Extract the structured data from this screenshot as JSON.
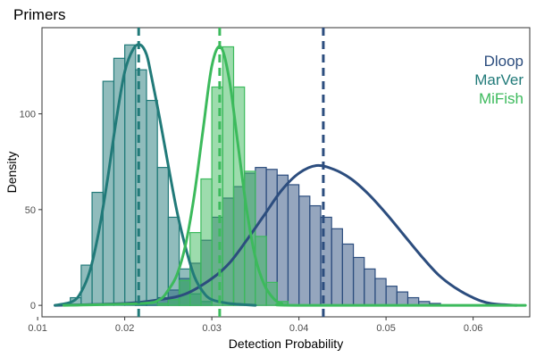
{
  "chart_data": {
    "type": "histogram-density",
    "title": "Primers",
    "xlabel": "Detection Probability",
    "ylabel": "Density",
    "xlim": [
      0.0105,
      0.0665
    ],
    "ylim": [
      -6,
      145
    ],
    "x_ticks": [
      0.01,
      0.02,
      0.03,
      0.04,
      0.05,
      0.06
    ],
    "x_tick_labels": [
      "0.01",
      "0.02",
      "0.03",
      "0.04",
      "0.05",
      "0.06"
    ],
    "y_ticks": [
      0,
      50,
      100
    ],
    "y_tick_labels": [
      "0",
      "50",
      "100"
    ],
    "bin_width": 0.00125,
    "legend_position": "top-right",
    "series": [
      {
        "name": "Dloop",
        "color": "#2c4d7e",
        "fill": "#2c4d7e",
        "mean": 0.0428,
        "bin_start": 0.02125,
        "hist": [
          1,
          2,
          4,
          8,
          14,
          22,
          34,
          46,
          56,
          62,
          69,
          72,
          71,
          68,
          63,
          57,
          52,
          46,
          40,
          32,
          25,
          19,
          14,
          10,
          7,
          4,
          2,
          1
        ],
        "density_x": [
          0.012,
          0.02,
          0.024,
          0.027,
          0.03,
          0.032,
          0.034,
          0.036,
          0.038,
          0.04,
          0.042,
          0.044,
          0.046,
          0.048,
          0.05,
          0.052,
          0.054,
          0.056,
          0.058,
          0.06,
          0.062,
          0.065
        ],
        "density_y": [
          0,
          1,
          3,
          6,
          14,
          22,
          34,
          47,
          60,
          69,
          73,
          71,
          66,
          58,
          48,
          37,
          26,
          16,
          9,
          4,
          1,
          0
        ]
      },
      {
        "name": "MarVer",
        "color": "#217a79",
        "fill": "#217a79",
        "mean": 0.0216,
        "bin_start": 0.01375,
        "hist": [
          4,
          21,
          59,
          117,
          129,
          136,
          123,
          107,
          72,
          46,
          19,
          6,
          2
        ],
        "density_x": [
          0.012,
          0.014,
          0.015,
          0.016,
          0.017,
          0.018,
          0.019,
          0.02,
          0.021,
          0.0218,
          0.0225,
          0.023,
          0.024,
          0.025,
          0.026,
          0.027,
          0.028,
          0.029,
          0.03,
          0.032,
          0.035
        ],
        "density_y": [
          0,
          2,
          7,
          18,
          38,
          65,
          96,
          122,
          134,
          136,
          131,
          121,
          98,
          73,
          49,
          30,
          15,
          7,
          3,
          1,
          0
        ]
      },
      {
        "name": "MiFish",
        "color": "#3cba5c",
        "fill": "#3cba5c",
        "mean": 0.0309,
        "bin_start": 0.02375,
        "hist": [
          1,
          3,
          13,
          38,
          66,
          114,
          135,
          114,
          70,
          36,
          12,
          2
        ],
        "density_x": [
          0.013,
          0.022,
          0.024,
          0.025,
          0.026,
          0.027,
          0.028,
          0.029,
          0.03,
          0.031,
          0.032,
          0.033,
          0.034,
          0.035,
          0.036,
          0.037,
          0.038,
          0.04,
          0.066
        ],
        "density_y": [
          0,
          1,
          3,
          8,
          16,
          32,
          58,
          92,
          125,
          135,
          118,
          84,
          50,
          25,
          11,
          4,
          1,
          0,
          0
        ]
      }
    ]
  }
}
